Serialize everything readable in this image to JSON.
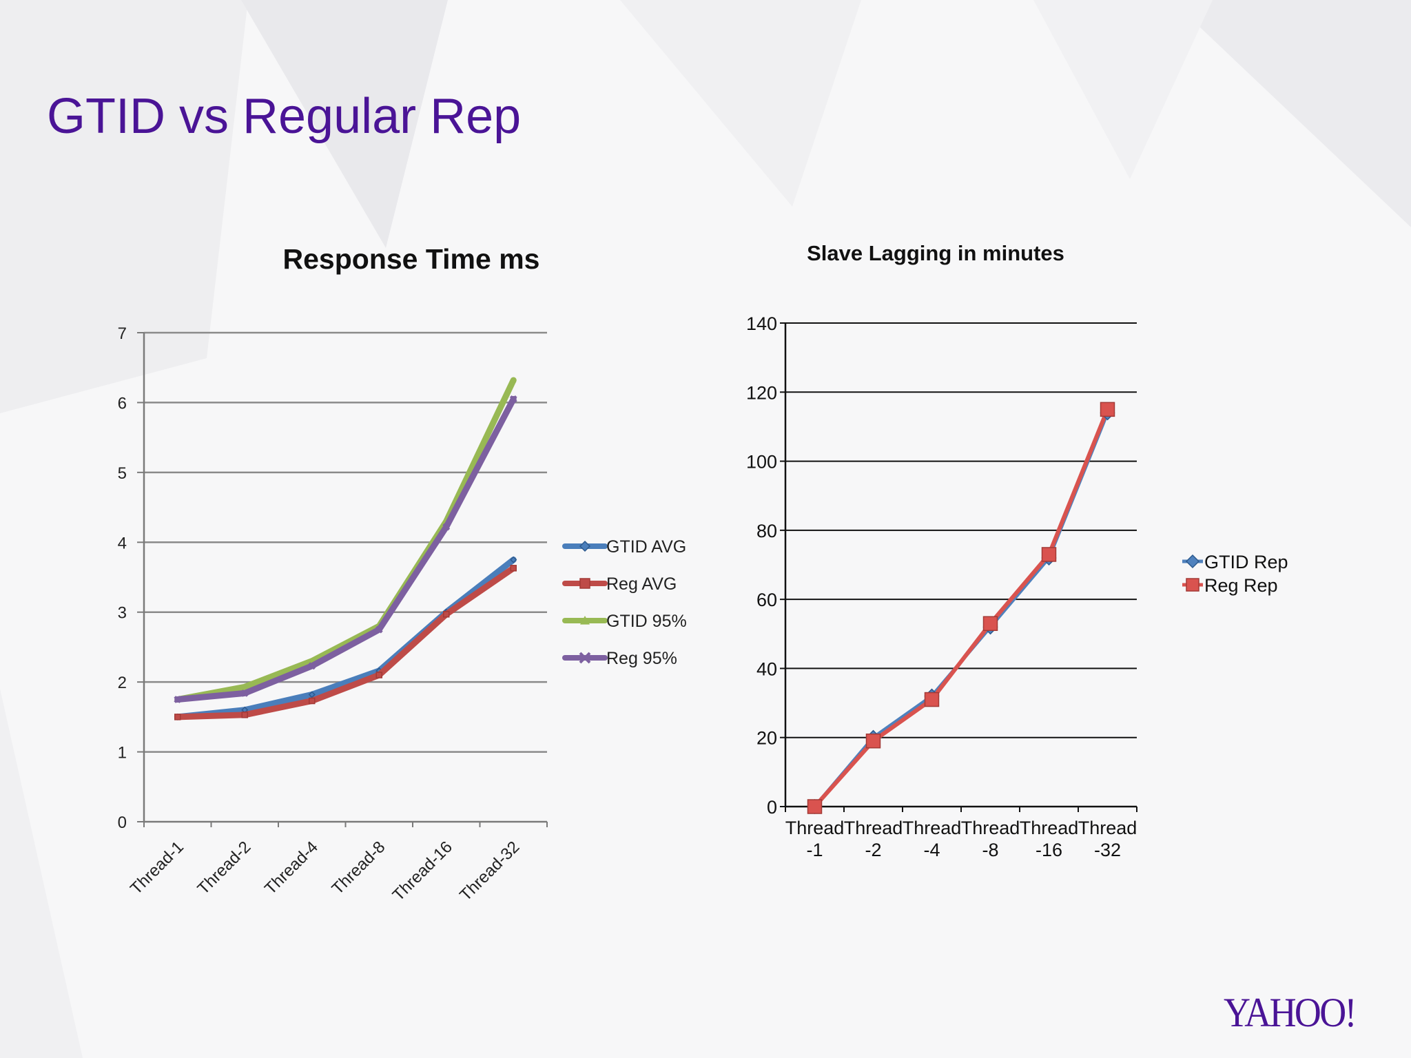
{
  "slide": {
    "title": "GTID vs Regular Rep",
    "brand": "YAHOO!",
    "colors": {
      "title": "#4a1496",
      "brand": "#4a1496"
    }
  },
  "chart_data": [
    {
      "type": "line",
      "title": "Response Time ms",
      "categories": [
        "Thread-1",
        "Thread-2",
        "Thread-4",
        "Thread-8",
        "Thread-16",
        "Thread-32"
      ],
      "series": [
        {
          "name": "GTID   AVG",
          "color": "#4a7ebb",
          "marker": "diamond",
          "values": [
            1.5,
            1.6,
            1.82,
            2.16,
            3.0,
            3.75
          ]
        },
        {
          "name": "Reg  AVG",
          "color": "#be4b48",
          "marker": "square",
          "values": [
            1.5,
            1.53,
            1.73,
            2.1,
            2.97,
            3.63
          ]
        },
        {
          "name": "GTID  95%",
          "color": "#98b954",
          "marker": "triangle",
          "values": [
            1.75,
            1.93,
            2.3,
            2.8,
            4.3,
            6.32
          ]
        },
        {
          "name": "Reg 95%",
          "color": "#7d60a0",
          "marker": "x",
          "values": [
            1.75,
            1.84,
            2.23,
            2.75,
            4.22,
            6.05
          ]
        }
      ],
      "ylim": [
        0,
        7
      ],
      "yticks": [
        0,
        1,
        2,
        3,
        4,
        5,
        6,
        7
      ],
      "grid": true,
      "legend": "right"
    },
    {
      "type": "line",
      "title": "Slave Lagging in minutes",
      "categories": [
        "Thread -1",
        "Thread -2",
        "Thread -4",
        "Thread -8",
        "Thread -16",
        "Thread -32"
      ],
      "series": [
        {
          "name": "GTID Rep",
          "color": "#4f81bd",
          "marker": "diamond",
          "values": [
            0,
            20,
            32,
            52,
            72,
            114
          ]
        },
        {
          "name": "Reg Rep",
          "color": "#d9534f",
          "marker": "square",
          "values": [
            0,
            19,
            31,
            53,
            73,
            115
          ]
        }
      ],
      "ylim": [
        0,
        140
      ],
      "yticks": [
        0,
        20,
        40,
        60,
        80,
        100,
        120,
        140
      ],
      "grid": true,
      "legend": "right"
    }
  ]
}
